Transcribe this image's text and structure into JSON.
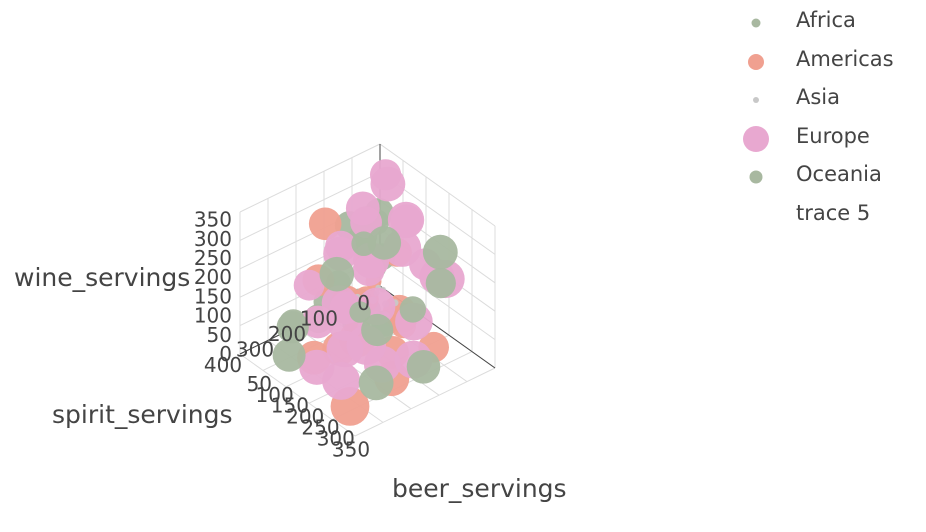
{
  "chart_data": {
    "type": "scatter3d",
    "x_axis": {
      "label": "beer_servings",
      "ticks": [
        "50",
        "100",
        "150",
        "200",
        "250",
        "300",
        "350"
      ],
      "range": [
        0,
        376
      ]
    },
    "y_axis": {
      "label": "spirit_servings",
      "ticks": [
        "0",
        "100",
        "200",
        "300",
        "400"
      ],
      "range": [
        0,
        438
      ]
    },
    "z_axis": {
      "label": "wine_servings",
      "ticks": [
        "0",
        "50",
        "100",
        "150",
        "200",
        "250",
        "300",
        "350"
      ],
      "range": [
        0,
        370
      ]
    },
    "marker_size_by": "total servings (bubble size)",
    "grid": true,
    "legend_position": "top-right",
    "series": [
      {
        "name": "Africa",
        "color": "#a8b8a0",
        "legend_marker_size": 9,
        "points": [
          {
            "x": 15,
            "y": 80,
            "z": 160
          },
          {
            "x": 30,
            "y": 40,
            "z": 200
          },
          {
            "x": 60,
            "y": 60,
            "z": 250
          },
          {
            "x": 25,
            "y": 120,
            "z": 220
          },
          {
            "x": 40,
            "y": 90,
            "z": 190
          },
          {
            "x": 80,
            "y": 70,
            "z": 150
          },
          {
            "x": 20,
            "y": 150,
            "z": 80
          },
          {
            "x": 35,
            "y": 200,
            "z": 60
          },
          {
            "x": 60,
            "y": 250,
            "z": 50
          },
          {
            "x": 90,
            "y": 150,
            "z": 70
          },
          {
            "x": 110,
            "y": 180,
            "z": 40
          },
          {
            "x": 140,
            "y": 120,
            "z": 30
          },
          {
            "x": 70,
            "y": 100,
            "z": 20
          },
          {
            "x": 30,
            "y": 300,
            "z": 40
          },
          {
            "x": 20,
            "y": 30,
            "z": 70
          }
        ]
      },
      {
        "name": "Americas",
        "color": "#f0a090",
        "legend_marker_size": 16,
        "points": [
          {
            "x": 10,
            "y": 30,
            "z": 30
          },
          {
            "x": 40,
            "y": 80,
            "z": 120
          },
          {
            "x": 120,
            "y": 60,
            "z": 180
          },
          {
            "x": 200,
            "y": 120,
            "z": 80
          },
          {
            "x": 250,
            "y": 200,
            "z": 50
          },
          {
            "x": 300,
            "y": 250,
            "z": 30
          },
          {
            "x": 180,
            "y": 300,
            "z": 60
          },
          {
            "x": 150,
            "y": 350,
            "z": 40
          },
          {
            "x": 100,
            "y": 200,
            "z": 100
          },
          {
            "x": 60,
            "y": 250,
            "z": 150
          },
          {
            "x": 30,
            "y": 200,
            "z": 260
          },
          {
            "x": 220,
            "y": 150,
            "z": 120
          },
          {
            "x": 280,
            "y": 100,
            "z": 40
          },
          {
            "x": 80,
            "y": 120,
            "z": 60
          },
          {
            "x": 160,
            "y": 80,
            "z": 20
          },
          {
            "x": 240,
            "y": 300,
            "z": 120
          },
          {
            "x": 320,
            "y": 400,
            "z": 30
          }
        ]
      },
      {
        "name": "Asia",
        "color": "#c8c8c8",
        "legend_marker_size": 6,
        "points": [
          {
            "x": 5,
            "y": 10,
            "z": 2
          },
          {
            "x": 20,
            "y": 30,
            "z": 5
          },
          {
            "x": 40,
            "y": 60,
            "z": 10
          },
          {
            "x": 60,
            "y": 40,
            "z": 3
          },
          {
            "x": 10,
            "y": 80,
            "z": 8
          },
          {
            "x": 30,
            "y": 120,
            "z": 15
          },
          {
            "x": 80,
            "y": 90,
            "z": 6
          },
          {
            "x": 100,
            "y": 150,
            "z": 12
          },
          {
            "x": 50,
            "y": 200,
            "z": 20
          },
          {
            "x": 15,
            "y": 5,
            "z": 1
          },
          {
            "x": 70,
            "y": 20,
            "z": 4
          },
          {
            "x": 120,
            "y": 100,
            "z": 30
          }
        ]
      },
      {
        "name": "Europe",
        "color": "#e8a8d0",
        "legend_marker_size": 26,
        "points": [
          {
            "x": 60,
            "y": 40,
            "z": 340
          },
          {
            "x": 120,
            "y": 90,
            "z": 370
          },
          {
            "x": 90,
            "y": 140,
            "z": 310
          },
          {
            "x": 150,
            "y": 60,
            "z": 280
          },
          {
            "x": 200,
            "y": 110,
            "z": 330
          },
          {
            "x": 240,
            "y": 160,
            "z": 300
          },
          {
            "x": 180,
            "y": 200,
            "z": 250
          },
          {
            "x": 100,
            "y": 220,
            "z": 230
          },
          {
            "x": 60,
            "y": 180,
            "z": 210
          },
          {
            "x": 280,
            "y": 90,
            "z": 220
          },
          {
            "x": 250,
            "y": 250,
            "z": 190
          },
          {
            "x": 160,
            "y": 280,
            "z": 160
          },
          {
            "x": 200,
            "y": 300,
            "z": 140
          },
          {
            "x": 320,
            "y": 200,
            "z": 170
          },
          {
            "x": 140,
            "y": 240,
            "z": 120
          },
          {
            "x": 230,
            "y": 330,
            "z": 100
          },
          {
            "x": 300,
            "y": 280,
            "z": 80
          },
          {
            "x": 270,
            "y": 380,
            "z": 60
          },
          {
            "x": 180,
            "y": 370,
            "z": 40
          },
          {
            "x": 110,
            "y": 300,
            "z": 90
          },
          {
            "x": 340,
            "y": 120,
            "z": 260
          },
          {
            "x": 80,
            "y": 120,
            "z": 260
          },
          {
            "x": 210,
            "y": 60,
            "z": 200
          },
          {
            "x": 300,
            "y": 330,
            "z": 150
          },
          {
            "x": 40,
            "y": 260,
            "z": 130
          },
          {
            "x": 130,
            "y": 160,
            "z": 180
          },
          {
            "x": 360,
            "y": 240,
            "z": 110
          }
        ]
      },
      {
        "name": "Oceania",
        "color": "#a8b8a0",
        "legend_marker_size": 13,
        "points": [
          {
            "x": 150,
            "y": 130,
            "z": 250
          },
          {
            "x": 260,
            "y": 60,
            "z": 260
          },
          {
            "x": 200,
            "y": 200,
            "z": 80
          },
          {
            "x": 100,
            "y": 380,
            "z": 30
          },
          {
            "x": 20,
            "y": 70,
            "z": 150
          },
          {
            "x": 50,
            "y": 110,
            "z": 5
          },
          {
            "x": 280,
            "y": 280,
            "z": 20
          },
          {
            "x": 120,
            "y": 250,
            "z": 200
          },
          {
            "x": 230,
            "y": 30,
            "z": 150
          },
          {
            "x": 70,
            "y": 340,
            "z": 70
          },
          {
            "x": 320,
            "y": 170,
            "z": 40
          },
          {
            "x": 170,
            "y": 60,
            "z": 60
          }
        ]
      },
      {
        "name": "trace 5",
        "color": "#ffffff",
        "legend_marker_size": 0,
        "points": []
      }
    ]
  }
}
